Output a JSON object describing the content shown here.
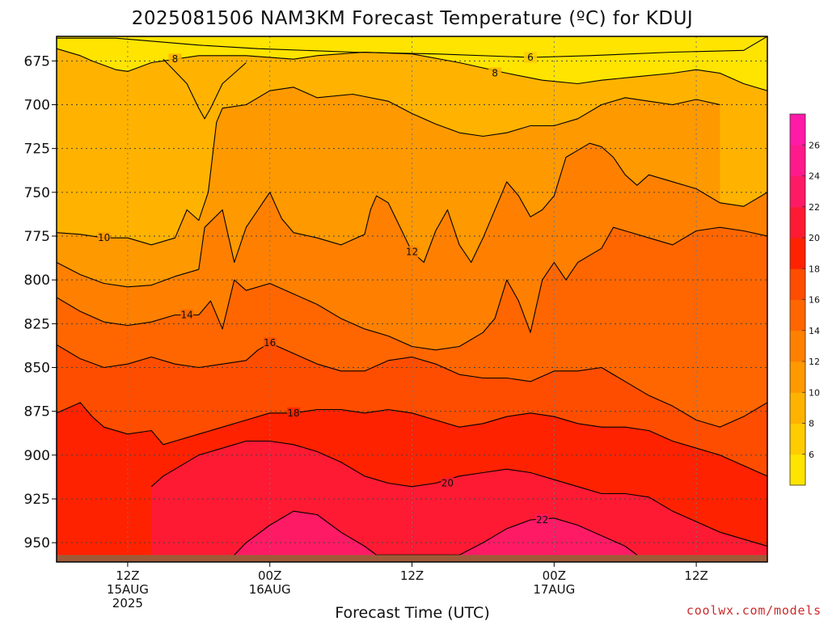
{
  "chart_data": {
    "type": "contour",
    "title": "2025081506 NAM3KM Forecast Temperature (ºC) for KDUJ",
    "xlabel": "Forecast Time (UTC)",
    "ylabel": "",
    "credit": "coolwx.com/models",
    "y_axis": {
      "unit": "hPa",
      "inverted": true,
      "range": [
        661,
        961
      ],
      "ticks": [
        "675",
        "700",
        "725",
        "750",
        "775",
        "800",
        "825",
        "850",
        "875",
        "900",
        "925",
        "950"
      ]
    },
    "x_axis": {
      "range": [
        "2025-08-15T06Z",
        "2025-08-17T18Z"
      ],
      "ticks": [
        {
          "time": "2025-08-15T12Z",
          "line1": "12Z",
          "line2": "15AUG",
          "line3": "2025"
        },
        {
          "time": "2025-08-16T00Z",
          "line1": "00Z",
          "line2": "16AUG",
          "line3": ""
        },
        {
          "time": "2025-08-16T12Z",
          "line1": "12Z",
          "line2": "",
          "line3": ""
        },
        {
          "time": "2025-08-17T00Z",
          "line1": "00Z",
          "line2": "17AUG",
          "line3": ""
        },
        {
          "time": "2025-08-17T12Z",
          "line1": "12Z",
          "line2": "",
          "line3": ""
        }
      ]
    },
    "grid": true,
    "legend": "colorbar-right",
    "colorbar": {
      "levels": [
        4,
        6,
        8,
        10,
        12,
        14,
        16,
        18,
        20,
        22,
        24,
        26,
        28
      ],
      "tick_labels": [
        "6",
        "8",
        "10",
        "12",
        "14",
        "16",
        "18",
        "20",
        "22",
        "24",
        "26"
      ],
      "colors": [
        "#ffe400",
        "#ffcc00",
        "#ffb300",
        "#ff9900",
        "#ff8000",
        "#ff6600",
        "#ff4d00",
        "#ff2200",
        "#ff1a33",
        "#ff1a66",
        "#ff1a8c",
        "#ff1aa8"
      ]
    },
    "terrain_color": "#a05a38",
    "surface_pressure_hPa": 957,
    "isotherms": [
      {
        "value": 6,
        "label": "6",
        "label_time": "2025-08-16T22Z",
        "pressure": [
          [
            -30,
            662
          ],
          [
            5,
            662
          ],
          [
            12,
            666
          ],
          [
            17,
            668
          ],
          [
            25,
            670
          ],
          [
            32,
            671
          ],
          [
            40,
            673
          ],
          [
            45,
            672
          ],
          [
            52,
            670
          ],
          [
            58,
            669
          ],
          [
            60,
            661
          ]
        ]
      },
      {
        "value": 8,
        "label": "8",
        "label_time": "2025-08-16T19Z",
        "pressure": [
          [
            0,
            668
          ],
          [
            2,
            672
          ],
          [
            3,
            675
          ],
          [
            5,
            680
          ],
          [
            6,
            681
          ],
          [
            8,
            676
          ],
          [
            12,
            672
          ],
          [
            16,
            672
          ],
          [
            20,
            674
          ],
          [
            22,
            672
          ],
          [
            26,
            670
          ],
          [
            30,
            671
          ],
          [
            34,
            676
          ],
          [
            38,
            682
          ],
          [
            41,
            686
          ],
          [
            44,
            688
          ],
          [
            46,
            686
          ],
          [
            49,
            684
          ],
          [
            52,
            682
          ],
          [
            54,
            680
          ],
          [
            56,
            682
          ],
          [
            57,
            685
          ],
          [
            58,
            688
          ],
          [
            60,
            692
          ]
        ]
      },
      {
        "value": 8,
        "label": "8",
        "label_time": "2025-08-15T16Z",
        "pressure": [
          [
            9,
            674
          ],
          [
            11,
            688
          ],
          [
            12,
            702
          ],
          [
            12.5,
            708
          ],
          [
            13,
            702
          ],
          [
            14,
            688
          ],
          [
            16,
            676
          ]
        ]
      },
      {
        "value": 10,
        "label": "10",
        "label_time": "2025-08-15T10Z",
        "pressure": [
          [
            0,
            773
          ],
          [
            2,
            774
          ],
          [
            4,
            776
          ],
          [
            6,
            776
          ],
          [
            8,
            780
          ],
          [
            10,
            776
          ],
          [
            11,
            760
          ],
          [
            12,
            766
          ],
          [
            12.8,
            750
          ],
          [
            13.5,
            710
          ],
          [
            14,
            702
          ],
          [
            16,
            700
          ],
          [
            18,
            692
          ],
          [
            20,
            690
          ],
          [
            22,
            696
          ],
          [
            25,
            694
          ],
          [
            28,
            698
          ],
          [
            30,
            705
          ],
          [
            32,
            711
          ],
          [
            34,
            716
          ],
          [
            36,
            718
          ],
          [
            38,
            716
          ],
          [
            40,
            712
          ],
          [
            42,
            712
          ],
          [
            44,
            708
          ],
          [
            46,
            700
          ],
          [
            48,
            696
          ],
          [
            50,
            698
          ],
          [
            52,
            700
          ],
          [
            54,
            697
          ],
          [
            56,
            700
          ]
        ]
      },
      {
        "value": 12,
        "label": "12",
        "label_time": "2025-08-16T12Z",
        "pressure": [
          [
            0,
            790
          ],
          [
            2,
            797
          ],
          [
            4,
            802
          ],
          [
            6,
            804
          ],
          [
            8,
            803
          ],
          [
            10,
            798
          ],
          [
            12,
            794
          ],
          [
            12.5,
            770
          ],
          [
            14,
            760
          ],
          [
            15,
            790
          ],
          [
            16,
            770
          ],
          [
            17,
            760
          ],
          [
            18,
            750
          ],
          [
            19,
            765
          ],
          [
            20,
            773
          ],
          [
            22,
            776
          ],
          [
            24,
            780
          ],
          [
            26,
            774
          ],
          [
            26.5,
            760
          ],
          [
            27,
            752
          ],
          [
            28,
            756
          ],
          [
            29,
            770
          ],
          [
            30,
            784
          ],
          [
            31,
            790
          ],
          [
            32,
            772
          ],
          [
            33,
            760
          ],
          [
            34,
            780
          ],
          [
            35,
            790
          ],
          [
            36,
            776
          ],
          [
            37,
            760
          ],
          [
            38,
            744
          ],
          [
            39,
            752
          ],
          [
            40,
            764
          ],
          [
            41,
            760
          ],
          [
            42,
            752
          ],
          [
            43,
            730
          ],
          [
            44,
            726
          ],
          [
            45,
            722
          ],
          [
            46,
            724
          ],
          [
            47,
            730
          ],
          [
            48,
            740
          ],
          [
            49,
            746
          ],
          [
            50,
            740
          ],
          [
            52,
            744
          ],
          [
            54,
            748
          ],
          [
            56,
            756
          ],
          [
            58,
            758
          ],
          [
            60,
            750
          ]
        ]
      },
      {
        "value": 14,
        "label": "14",
        "label_time": "2025-08-15T17Z",
        "pressure": [
          [
            0,
            810
          ],
          [
            2,
            818
          ],
          [
            4,
            824
          ],
          [
            6,
            826
          ],
          [
            8,
            824
          ],
          [
            10,
            820
          ],
          [
            12,
            820
          ],
          [
            13,
            812
          ],
          [
            14,
            828
          ],
          [
            15,
            800
          ],
          [
            16,
            806
          ],
          [
            18,
            802
          ],
          [
            20,
            808
          ],
          [
            22,
            814
          ],
          [
            24,
            822
          ],
          [
            26,
            828
          ],
          [
            28,
            832
          ],
          [
            30,
            838
          ],
          [
            32,
            840
          ],
          [
            34,
            838
          ],
          [
            36,
            830
          ],
          [
            37,
            822
          ],
          [
            38,
            800
          ],
          [
            39,
            812
          ],
          [
            40,
            830
          ],
          [
            41,
            800
          ],
          [
            42,
            790
          ],
          [
            43,
            800
          ],
          [
            44,
            790
          ],
          [
            45,
            786
          ],
          [
            46,
            782
          ],
          [
            47,
            770
          ],
          [
            48,
            772
          ],
          [
            50,
            776
          ],
          [
            52,
            780
          ],
          [
            54,
            772
          ],
          [
            56,
            770
          ],
          [
            58,
            772
          ],
          [
            60,
            775
          ]
        ]
      },
      {
        "value": 16,
        "label": "16",
        "label_time": "2025-08-16T00Z",
        "pressure": [
          [
            0,
            837
          ],
          [
            2,
            845
          ],
          [
            4,
            850
          ],
          [
            6,
            848
          ],
          [
            8,
            844
          ],
          [
            10,
            848
          ],
          [
            12,
            850
          ],
          [
            14,
            848
          ],
          [
            16,
            846
          ],
          [
            17,
            840
          ],
          [
            18,
            836
          ],
          [
            20,
            842
          ],
          [
            22,
            848
          ],
          [
            24,
            852
          ],
          [
            26,
            852
          ],
          [
            28,
            846
          ],
          [
            30,
            844
          ],
          [
            32,
            848
          ],
          [
            34,
            854
          ],
          [
            36,
            856
          ],
          [
            38,
            856
          ],
          [
            40,
            858
          ],
          [
            42,
            852
          ],
          [
            44,
            852
          ],
          [
            46,
            850
          ],
          [
            48,
            858
          ],
          [
            50,
            866
          ],
          [
            52,
            872
          ],
          [
            54,
            880
          ],
          [
            56,
            884
          ],
          [
            58,
            878
          ],
          [
            60,
            870
          ]
        ]
      },
      {
        "value": 18,
        "label": "18",
        "label_time": "2025-08-16T02Z",
        "pressure": [
          [
            0,
            876
          ],
          [
            1,
            873
          ],
          [
            2,
            870
          ],
          [
            3,
            878
          ],
          [
            4,
            884
          ],
          [
            6,
            888
          ],
          [
            8,
            886
          ],
          [
            9,
            894
          ],
          [
            10,
            892
          ],
          [
            12,
            888
          ],
          [
            14,
            884
          ],
          [
            16,
            880
          ],
          [
            18,
            876
          ],
          [
            20,
            876
          ],
          [
            22,
            874
          ],
          [
            24,
            874
          ],
          [
            26,
            876
          ],
          [
            28,
            874
          ],
          [
            30,
            876
          ],
          [
            32,
            880
          ],
          [
            34,
            884
          ],
          [
            36,
            882
          ],
          [
            38,
            878
          ],
          [
            40,
            876
          ],
          [
            42,
            878
          ],
          [
            44,
            882
          ],
          [
            46,
            884
          ],
          [
            48,
            884
          ],
          [
            50,
            886
          ],
          [
            52,
            892
          ],
          [
            54,
            896
          ],
          [
            56,
            900
          ],
          [
            58,
            906
          ],
          [
            60,
            912
          ]
        ]
      },
      {
        "value": 20,
        "label": "20",
        "label_time": "2025-08-16T15Z",
        "pressure": [
          [
            8,
            918
          ],
          [
            9,
            912
          ],
          [
            10,
            908
          ],
          [
            12,
            900
          ],
          [
            14,
            896
          ],
          [
            16,
            892
          ],
          [
            18,
            892
          ],
          [
            20,
            894
          ],
          [
            22,
            898
          ],
          [
            24,
            904
          ],
          [
            26,
            912
          ],
          [
            28,
            916
          ],
          [
            30,
            918
          ],
          [
            32,
            916
          ],
          [
            34,
            912
          ],
          [
            36,
            910
          ],
          [
            38,
            908
          ],
          [
            40,
            910
          ],
          [
            42,
            914
          ],
          [
            44,
            918
          ],
          [
            46,
            922
          ],
          [
            48,
            922
          ],
          [
            50,
            924
          ],
          [
            52,
            932
          ],
          [
            54,
            938
          ],
          [
            56,
            944
          ],
          [
            58,
            948
          ],
          [
            60,
            952
          ]
        ]
      },
      {
        "value": 22,
        "label": "22",
        "label_time": "2025-08-16T23Z",
        "pressure": [
          [
            15,
            957
          ],
          [
            16,
            950
          ],
          [
            18,
            940
          ],
          [
            20,
            932
          ],
          [
            22,
            934
          ],
          [
            24,
            944
          ],
          [
            26,
            952
          ],
          [
            27,
            957
          ],
          [
            34,
            957
          ],
          [
            36,
            950
          ],
          [
            38,
            942
          ],
          [
            40,
            937
          ],
          [
            42,
            936
          ],
          [
            44,
            940
          ],
          [
            46,
            946
          ],
          [
            48,
            952
          ],
          [
            49,
            957
          ]
        ]
      }
    ]
  }
}
